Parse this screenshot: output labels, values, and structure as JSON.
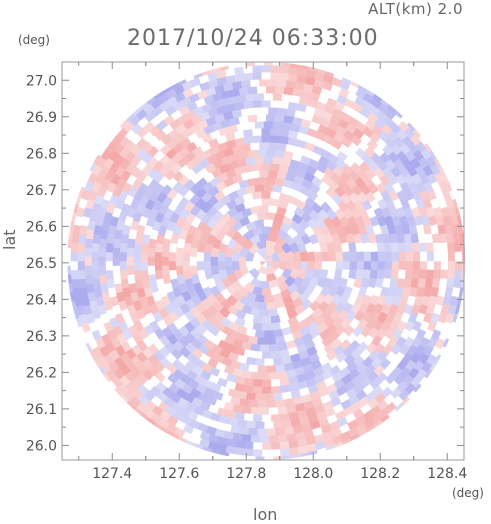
{
  "header": {
    "altitude_label": "ALT(km) 2.0",
    "datetime": "2017/10/24 06:33:00"
  },
  "axes": {
    "y_unit": "(deg)",
    "x_unit": "(deg)",
    "y_title": "lat",
    "x_title": "lon"
  },
  "chart_data": {
    "type": "heatmap",
    "title": "2017/10/24 06:33:00",
    "subtitle": "ALT(km) 2.0",
    "xlabel": "lon",
    "ylabel": "lat",
    "x_unit": "(deg)",
    "y_unit": "(deg)",
    "xlim": [
      127.25,
      128.45
    ],
    "ylim": [
      25.96,
      27.05
    ],
    "x_ticks": [
      "127.4",
      "127.6",
      "127.8",
      "128.0",
      "128.2",
      "128.4"
    ],
    "y_ticks": [
      "26.0",
      "26.1",
      "26.2",
      "26.3",
      "26.4",
      "26.5",
      "26.6",
      "26.7",
      "26.8",
      "26.9",
      "27.0"
    ],
    "center": {
      "lon": 127.86,
      "lat": 26.505
    },
    "radius_deg_lat": 0.545,
    "grid": false,
    "colormap": {
      "negative": "#8f8fe8",
      "positive": "#f08a8a",
      "zero": "#ffffff"
    }
  }
}
